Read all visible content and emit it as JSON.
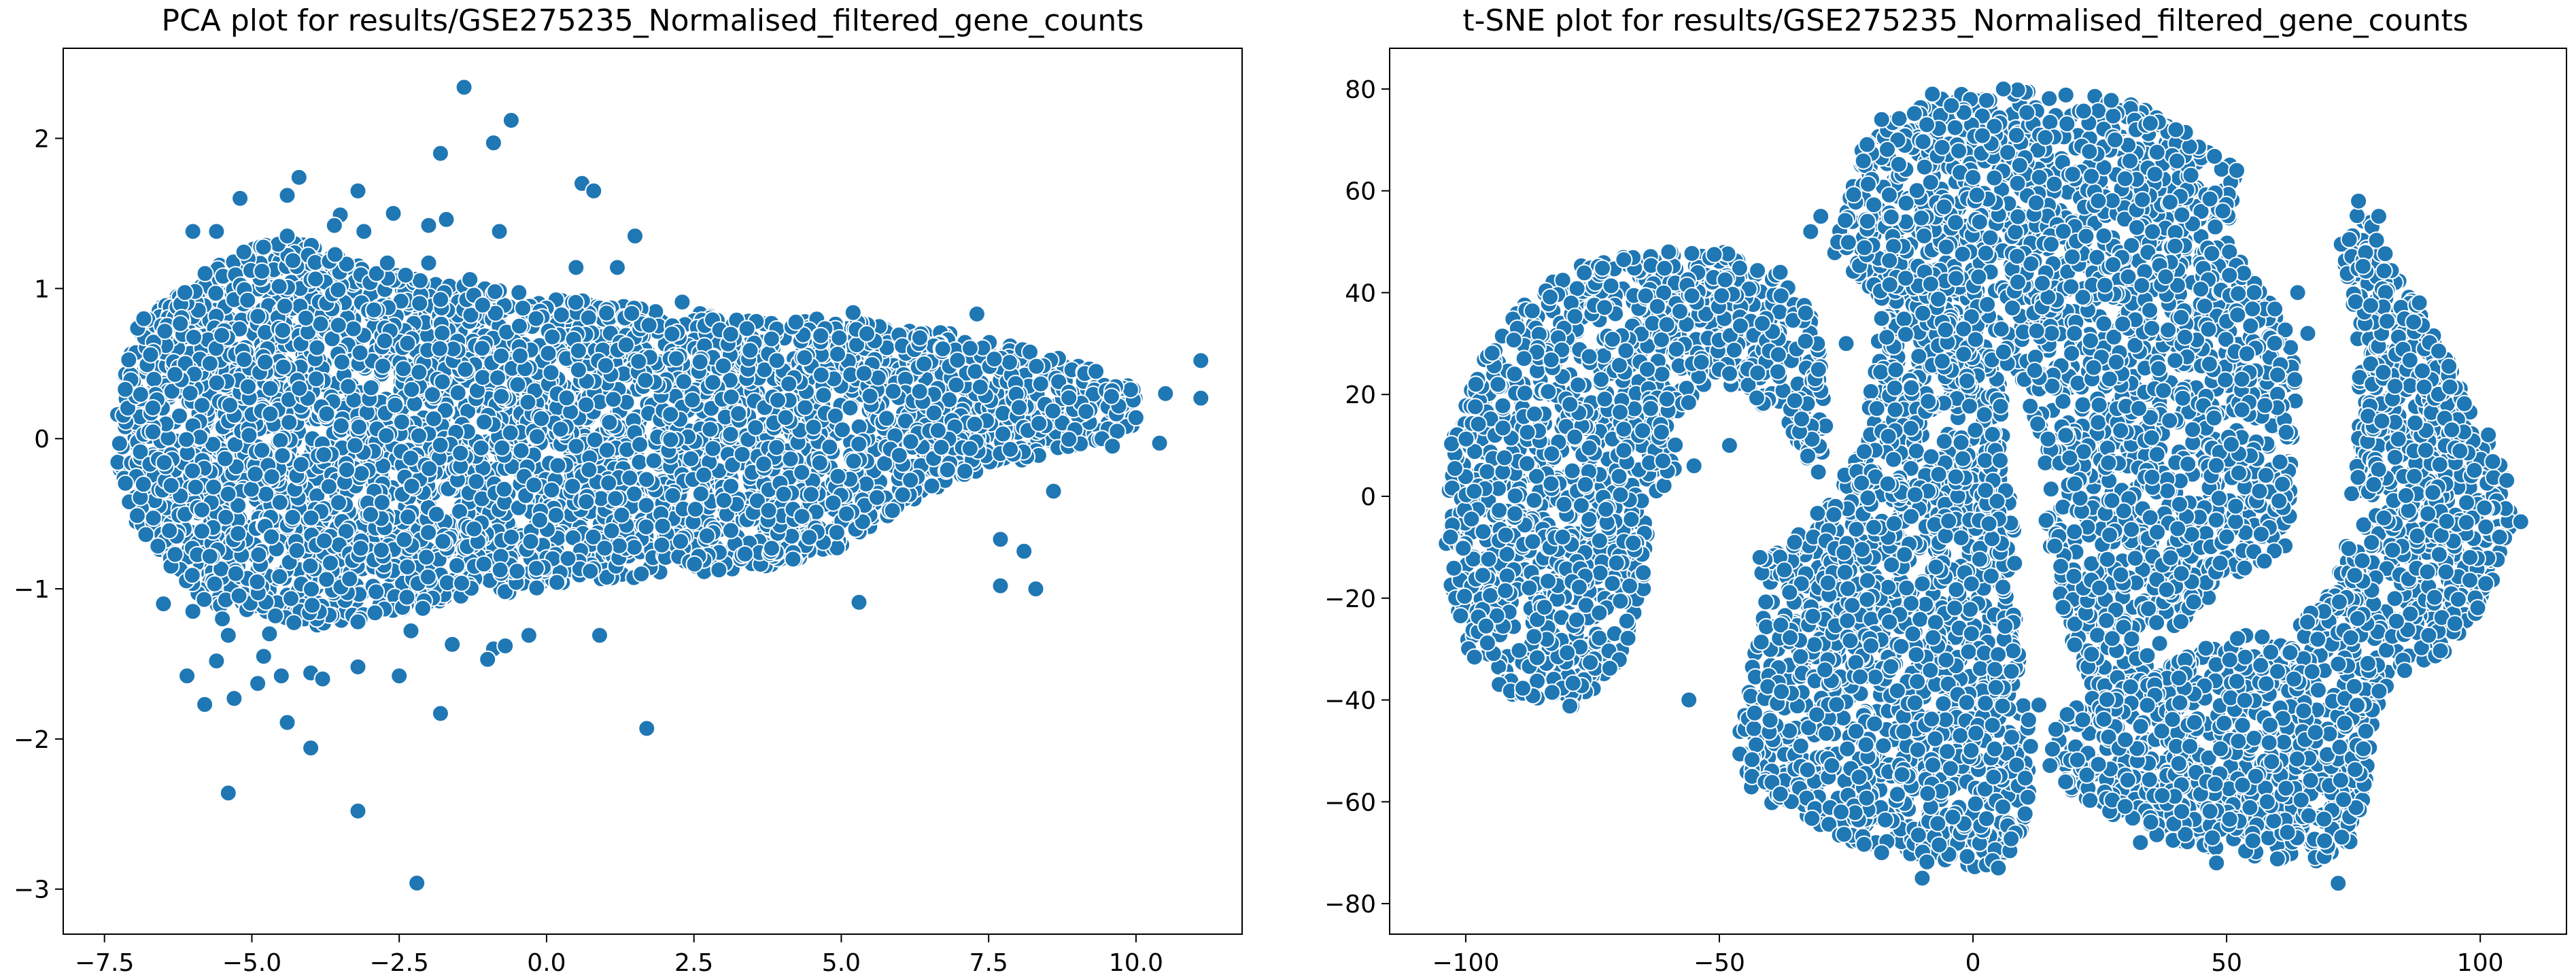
{
  "chart_data": [
    {
      "type": "scatter",
      "title": "PCA plot for results/GSE275235_Normalised_filtered_gene_counts",
      "xlabel": "",
      "ylabel": "",
      "xlim": [
        -8.2,
        11.8
      ],
      "ylim": [
        -3.3,
        2.6
      ],
      "xticks": [
        -7.5,
        -5.0,
        -2.5,
        0.0,
        2.5,
        5.0,
        7.5,
        10.0
      ],
      "xtick_labels": [
        "−7.5",
        "−5.0",
        "−2.5",
        "0.0",
        "2.5",
        "5.0",
        "7.5",
        "10.0"
      ],
      "yticks": [
        -3,
        -2,
        -1,
        0,
        1,
        2
      ],
      "ytick_labels": [
        "−3",
        "−2",
        "−1",
        "0",
        "1",
        "2"
      ],
      "grid": false,
      "legend": "none",
      "marker_color": "#1f77b4",
      "edge_color": "#ffffff",
      "dense_region": {
        "x_upper": [
          [
            -7.3,
            0.15
          ],
          [
            -7.0,
            0.75
          ],
          [
            -6.0,
            1.05
          ],
          [
            -5.0,
            1.3
          ],
          [
            -4.0,
            1.3
          ],
          [
            -3.0,
            1.15
          ],
          [
            -2.0,
            1.05
          ],
          [
            -1.0,
            1.0
          ],
          [
            0.0,
            0.95
          ],
          [
            1.0,
            0.9
          ],
          [
            2.0,
            0.85
          ],
          [
            3.0,
            0.85
          ],
          [
            4.0,
            0.8
          ],
          [
            5.0,
            0.8
          ],
          [
            6.0,
            0.72
          ],
          [
            7.0,
            0.7
          ],
          [
            8.0,
            0.62
          ],
          [
            9.0,
            0.5
          ],
          [
            10.0,
            0.35
          ]
        ],
        "x_lower": [
          [
            10.0,
            0.05
          ],
          [
            9.0,
            -0.05
          ],
          [
            8.0,
            -0.15
          ],
          [
            7.0,
            -0.25
          ],
          [
            6.0,
            -0.45
          ],
          [
            5.0,
            -0.75
          ],
          [
            4.0,
            -0.85
          ],
          [
            3.0,
            -0.88
          ],
          [
            2.0,
            -0.9
          ],
          [
            1.0,
            -0.95
          ],
          [
            0.0,
            -1.0
          ],
          [
            -1.0,
            -1.05
          ],
          [
            -2.0,
            -1.1
          ],
          [
            -3.0,
            -1.2
          ],
          [
            -4.0,
            -1.25
          ],
          [
            -5.0,
            -1.2
          ],
          [
            -6.0,
            -1.05
          ],
          [
            -7.0,
            -0.55
          ],
          [
            -7.3,
            -0.2
          ]
        ],
        "point_count": 4200,
        "seed": 7
      },
      "points": [
        [
          -1.4,
          2.34
        ],
        [
          -0.6,
          2.12
        ],
        [
          -0.9,
          1.97
        ],
        [
          -1.8,
          1.9
        ],
        [
          -4.2,
          1.74
        ],
        [
          -4.4,
          1.62
        ],
        [
          -5.2,
          1.6
        ],
        [
          0.6,
          1.7
        ],
        [
          0.8,
          1.65
        ],
        [
          -3.2,
          1.65
        ],
        [
          -3.5,
          1.49
        ],
        [
          -2.6,
          1.5
        ],
        [
          -1.7,
          1.46
        ],
        [
          -2.0,
          1.42
        ],
        [
          -3.6,
          1.42
        ],
        [
          -3.1,
          1.38
        ],
        [
          -0.8,
          1.38
        ],
        [
          1.5,
          1.35
        ],
        [
          -4.4,
          1.35
        ],
        [
          -6.0,
          1.38
        ],
        [
          -5.6,
          1.38
        ],
        [
          -1.3,
          1.06
        ],
        [
          0.5,
          1.14
        ],
        [
          1.2,
          1.14
        ],
        [
          -2.0,
          1.17
        ],
        [
          -2.7,
          1.17
        ],
        [
          2.3,
          0.91
        ],
        [
          5.2,
          0.84
        ],
        [
          7.3,
          0.83
        ],
        [
          11.1,
          0.52
        ],
        [
          11.1,
          0.27
        ],
        [
          10.5,
          0.3
        ],
        [
          10.0,
          0.14
        ],
        [
          10.4,
          -0.03
        ],
        [
          9.6,
          -0.05
        ],
        [
          8.6,
          -0.35
        ],
        [
          7.7,
          -0.67
        ],
        [
          8.1,
          -0.75
        ],
        [
          7.7,
          -0.98
        ],
        [
          8.3,
          -1.0
        ],
        [
          5.3,
          -1.09
        ],
        [
          -6.5,
          -1.1
        ],
        [
          -6.0,
          -1.15
        ],
        [
          -5.5,
          -1.2
        ],
        [
          -4.6,
          -1.18
        ],
        [
          -3.2,
          -1.22
        ],
        [
          -2.1,
          -1.13
        ],
        [
          -1.6,
          -1.37
        ],
        [
          -2.3,
          -1.28
        ],
        [
          -4.7,
          -1.3
        ],
        [
          -5.4,
          -1.31
        ],
        [
          -0.9,
          -1.4
        ],
        [
          -0.7,
          -1.38
        ],
        [
          -3.2,
          -1.52
        ],
        [
          -4.0,
          -1.56
        ],
        [
          -4.8,
          -1.45
        ],
        [
          -5.6,
          -1.48
        ],
        [
          -6.1,
          -1.58
        ],
        [
          -5.8,
          -1.77
        ],
        [
          -5.3,
          -1.73
        ],
        [
          -4.9,
          -1.63
        ],
        [
          -4.5,
          -1.58
        ],
        [
          -2.5,
          -1.58
        ],
        [
          -3.8,
          -1.6
        ],
        [
          -4.4,
          -1.89
        ],
        [
          -4.0,
          -2.06
        ],
        [
          -1.8,
          -1.83
        ],
        [
          1.7,
          -1.93
        ],
        [
          -5.4,
          -2.36
        ],
        [
          -3.2,
          -2.48
        ],
        [
          -2.2,
          -2.96
        ],
        [
          -0.3,
          -1.31
        ],
        [
          0.9,
          -1.31
        ],
        [
          -1.0,
          -1.47
        ]
      ]
    },
    {
      "type": "scatter",
      "title": "t-SNE plot for results/GSE275235_Normalised_filtered_gene_counts",
      "xlabel": "",
      "ylabel": "",
      "xlim": [
        -115,
        117
      ],
      "ylim": [
        -86,
        88
      ],
      "xticks": [
        -100,
        -50,
        0,
        50,
        100
      ],
      "xtick_labels": [
        "−100",
        "−50",
        "0",
        "50",
        "100"
      ],
      "yticks": [
        -80,
        -60,
        -40,
        -20,
        0,
        20,
        40,
        60,
        80
      ],
      "ytick_labels": [
        "−80",
        "−60",
        "−40",
        "−20",
        "0",
        "20",
        "40",
        "60",
        "80"
      ],
      "grid": false,
      "legend": "none",
      "marker_color": "#1f77b4",
      "edge_color": "#ffffff",
      "clusters": [
        {
          "shape": "polygon",
          "count": 1300,
          "seed": 11,
          "vertices": [
            [
              -104,
              -8
            ],
            [
              -103,
              10
            ],
            [
              -97,
              26
            ],
            [
              -88,
              40
            ],
            [
              -76,
              46
            ],
            [
              -62,
              48
            ],
            [
              -48,
              48
            ],
            [
              -38,
              44
            ],
            [
              -32,
              36
            ],
            [
              -29,
              26
            ],
            [
              -29,
              12
            ],
            [
              -30,
              3
            ],
            [
              -36,
              13
            ],
            [
              -44,
              20
            ],
            [
              -54,
              22
            ],
            [
              -58,
              15
            ],
            [
              -59,
              4
            ],
            [
              -63,
              -2
            ],
            [
              -64,
              -14
            ],
            [
              -66,
              -26
            ],
            [
              -72,
              -36
            ],
            [
              -80,
              -42
            ],
            [
              -92,
              -40
            ],
            [
              -100,
              -30
            ],
            [
              -104,
              -18
            ]
          ]
        },
        {
          "shape": "polygon",
          "count": 1500,
          "seed": 13,
          "vertices": [
            [
              -42,
              -12
            ],
            [
              -41,
              -22
            ],
            [
              -44,
              -34
            ],
            [
              -47,
              -50
            ],
            [
              -43,
              -59
            ],
            [
              -33,
              -63
            ],
            [
              -20,
              -70
            ],
            [
              -8,
              -72
            ],
            [
              2,
              -73
            ],
            [
              8,
              -70
            ],
            [
              12,
              -60
            ],
            [
              12,
              -48
            ],
            [
              10,
              -38
            ],
            [
              9,
              -22
            ],
            [
              8,
              -5
            ],
            [
              6,
              8
            ],
            [
              6,
              20
            ],
            [
              4,
              32
            ],
            [
              -2,
              40
            ],
            [
              -10,
              45
            ],
            [
              -22,
              48
            ],
            [
              -24,
              44
            ],
            [
              -18,
              38
            ],
            [
              -20,
              24
            ],
            [
              -22,
              10
            ],
            [
              -28,
              0
            ],
            [
              -34,
              -6
            ]
          ]
        },
        {
          "shape": "polygon",
          "count": 2000,
          "seed": 17,
          "vertices": [
            [
              -28,
              48
            ],
            [
              -24,
              60
            ],
            [
              -22,
              68
            ],
            [
              -18,
              74
            ],
            [
              -5,
              79
            ],
            [
              10,
              80
            ],
            [
              25,
              79
            ],
            [
              34,
              76
            ],
            [
              45,
              70
            ],
            [
              52,
              64
            ],
            [
              50,
              50
            ],
            [
              58,
              40
            ],
            [
              63,
              30
            ],
            [
              64,
              20
            ],
            [
              63,
              5
            ],
            [
              62,
              -10
            ],
            [
              54,
              -16
            ],
            [
              44,
              -22
            ],
            [
              38,
              -28
            ],
            [
              33,
              -38
            ],
            [
              28,
              -45
            ],
            [
              24,
              -48
            ],
            [
              22,
              -42
            ],
            [
              20,
              -30
            ],
            [
              16,
              -16
            ],
            [
              14,
              -2
            ],
            [
              13,
              10
            ],
            [
              10,
              22
            ],
            [
              5,
              26
            ],
            [
              0,
              22
            ],
            [
              -4,
              18
            ],
            [
              -6,
              25
            ],
            [
              -8,
              34
            ],
            [
              -14,
              40
            ],
            [
              -22,
              45
            ]
          ]
        },
        {
          "shape": "polygon",
          "count": 1500,
          "seed": 19,
          "vertices": [
            [
              15,
              -45
            ],
            [
              15,
              -55
            ],
            [
              22,
              -60
            ],
            [
              30,
              -64
            ],
            [
              40,
              -68
            ],
            [
              52,
              -70
            ],
            [
              62,
              -72
            ],
            [
              72,
              -72
            ],
            [
              76,
              -66
            ],
            [
              78,
              -52
            ],
            [
              80,
              -42
            ],
            [
              82,
              -36
            ],
            [
              88,
              -34
            ],
            [
              95,
              -30
            ],
            [
              102,
              -18
            ],
            [
              106,
              -6
            ],
            [
              106,
              4
            ],
            [
              100,
              16
            ],
            [
              94,
              26
            ],
            [
              90,
              34
            ],
            [
              86,
              40
            ],
            [
              80,
              52
            ],
            [
              76,
              58
            ],
            [
              72,
              52
            ],
            [
              74,
              42
            ],
            [
              76,
              28
            ],
            [
              76,
              12
            ],
            [
              74,
              -2
            ],
            [
              72,
              -14
            ],
            [
              68,
              -22
            ],
            [
              60,
              -26
            ],
            [
              48,
              -28
            ],
            [
              38,
              -32
            ],
            [
              30,
              -38
            ],
            [
              22,
              -40
            ]
          ]
        }
      ],
      "points": [
        [
          -65,
          -15
        ],
        [
          -79,
          5
        ],
        [
          -48,
          10
        ],
        [
          -38,
          44
        ],
        [
          -33,
          36
        ],
        [
          -60,
          48
        ],
        [
          -103,
          -8
        ],
        [
          -98,
          22
        ],
        [
          -25,
          30
        ],
        [
          -55,
          6
        ],
        [
          -42,
          -12
        ],
        [
          -56,
          -40
        ],
        [
          -26,
          -62
        ],
        [
          72,
          -76
        ],
        [
          48,
          -72
        ],
        [
          -10,
          -75
        ],
        [
          5,
          -73
        ],
        [
          62,
          -66
        ],
        [
          58,
          -60
        ],
        [
          54,
          28
        ],
        [
          53,
          23
        ],
        [
          20,
          32
        ],
        [
          -8,
          79
        ],
        [
          6,
          80
        ],
        [
          -30,
          55
        ],
        [
          -32,
          52
        ],
        [
          64,
          40
        ],
        [
          66,
          32
        ],
        [
          108,
          -5
        ],
        [
          76,
          58
        ],
        [
          80,
          55
        ],
        [
          88,
          38
        ],
        [
          -18,
          74
        ],
        [
          40,
          72
        ],
        [
          52,
          64
        ],
        [
          13,
          -41
        ],
        [
          -40,
          -44
        ],
        [
          -18,
          -70
        ],
        [
          33,
          -68
        ],
        [
          98,
          -12
        ],
        [
          95,
          -25
        ]
      ]
    }
  ]
}
